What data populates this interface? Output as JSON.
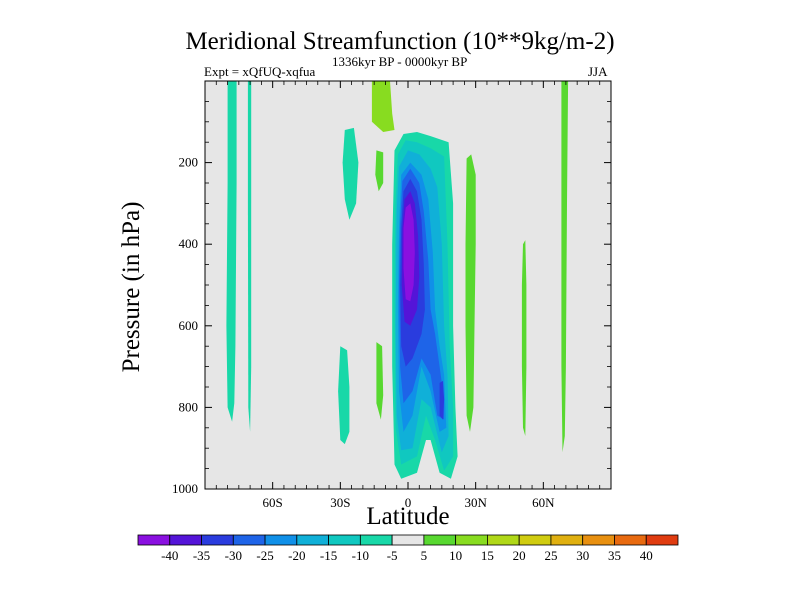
{
  "chart_data": {
    "type": "heatmap",
    "title": "Meridional Streamfunction (10**9kg/m-2)",
    "left_annotation": "Expt = xQfUQ-xqfua",
    "center_annotation": "1336kyr BP - 0000kyr BP",
    "right_annotation": "JJA",
    "xlabel": "Latitude",
    "ylabel": "Pressure (in hPa)",
    "xlim": [
      -90,
      90
    ],
    "ylim": [
      1000,
      0
    ],
    "x_ticks": [
      {
        "value": -60,
        "label": "60S"
      },
      {
        "value": -30,
        "label": "30S"
      },
      {
        "value": 0,
        "label": "0"
      },
      {
        "value": 30,
        "label": "30N"
      },
      {
        "value": 60,
        "label": "60N"
      }
    ],
    "y_ticks": [
      {
        "value": 200,
        "label": "200"
      },
      {
        "value": 400,
        "label": "400"
      },
      {
        "value": 600,
        "label": "600"
      },
      {
        "value": 800,
        "label": "800"
      },
      {
        "value": 1000,
        "label": "1000"
      }
    ],
    "background_color": "#e6e6e6",
    "colorbar": {
      "labels": [
        "-40",
        "-35",
        "-30",
        "-25",
        "-20",
        "-15",
        "-10",
        "-5",
        "5",
        "10",
        "15",
        "20",
        "25",
        "30",
        "35",
        "40"
      ],
      "colors": [
        "#8a10e0",
        "#5414d8",
        "#2a3cde",
        "#1e64e8",
        "#1090e8",
        "#10b0d8",
        "#10c8c0",
        "#18d8a8",
        "#e6e6e6",
        "#58d830",
        "#88dc20",
        "#b0d818",
        "#d0cc10",
        "#e0b010",
        "#e89010",
        "#e86a10",
        "#e03c10"
      ]
    },
    "contour_regions": [
      {
        "name": "far-south-left-band",
        "color": "#18d8a8",
        "points": [
          [
            -80,
            0
          ],
          [
            -76,
            0
          ],
          [
            -76,
            250
          ],
          [
            -76.5,
            650
          ],
          [
            -77,
            790
          ],
          [
            -78,
            835
          ],
          [
            -80,
            800
          ],
          [
            -80.5,
            600
          ],
          [
            -80,
            250
          ]
        ]
      },
      {
        "name": "far-south-thin-band",
        "color": "#18d8a8",
        "points": [
          [
            -71,
            0
          ],
          [
            -69.5,
            0
          ],
          [
            -69.5,
            300
          ],
          [
            -69.5,
            700
          ],
          [
            -70,
            860
          ],
          [
            -70.8,
            800
          ],
          [
            -71,
            300
          ]
        ]
      },
      {
        "name": "south-upper-patch",
        "color": "#18d8a8",
        "points": [
          [
            -28,
            120
          ],
          [
            -24,
            115
          ],
          [
            -22,
            200
          ],
          [
            -23,
            300
          ],
          [
            -26,
            340
          ],
          [
            -28,
            290
          ],
          [
            -29,
            200
          ]
        ]
      },
      {
        "name": "south-lower-patch",
        "color": "#18d8a8",
        "points": [
          [
            -30,
            650
          ],
          [
            -27,
            660
          ],
          [
            -26,
            750
          ],
          [
            -26,
            860
          ],
          [
            -28,
            890
          ],
          [
            -30,
            880
          ],
          [
            -31,
            760
          ]
        ]
      },
      {
        "name": "south-upper-green-cap",
        "color": "#88dc20",
        "points": [
          [
            -16,
            0
          ],
          [
            -8,
            0
          ],
          [
            -7,
            80
          ],
          [
            -6,
            120
          ],
          [
            -11,
            125
          ],
          [
            -16,
            100
          ]
        ]
      },
      {
        "name": "south-upper-green-sliver",
        "color": "#58d830",
        "points": [
          [
            -14,
            170
          ],
          [
            -11,
            175
          ],
          [
            -11,
            250
          ],
          [
            -13,
            270
          ],
          [
            -14.5,
            230
          ]
        ]
      },
      {
        "name": "south-lower-green-sliver",
        "color": "#58d830",
        "points": [
          [
            -14,
            640
          ],
          [
            -11.5,
            650
          ],
          [
            -11,
            770
          ],
          [
            -12,
            830
          ],
          [
            -14,
            790
          ]
        ]
      },
      {
        "name": "tropical-cell-outer",
        "color": "#18d8a8",
        "points": [
          [
            -6,
            170
          ],
          [
            -2,
            130
          ],
          [
            4,
            125
          ],
          [
            10,
            135
          ],
          [
            18,
            150
          ],
          [
            20,
            300
          ],
          [
            20,
            600
          ],
          [
            21,
            800
          ],
          [
            22,
            920
          ],
          [
            19,
            975
          ],
          [
            14,
            960
          ],
          [
            10,
            880
          ],
          [
            8,
            880
          ],
          [
            4,
            960
          ],
          [
            -3,
            975
          ],
          [
            -6,
            940
          ],
          [
            -7,
            700
          ],
          [
            -7,
            400
          ]
        ]
      },
      {
        "name": "tropical-cell-ring-10",
        "color": "#10c8c0",
        "points": [
          [
            -4.5,
            180
          ],
          [
            -1,
            145
          ],
          [
            4,
            150
          ],
          [
            10,
            165
          ],
          [
            16,
            185
          ],
          [
            17.5,
            400
          ],
          [
            18.5,
            650
          ],
          [
            20,
            800
          ],
          [
            20,
            920
          ],
          [
            16,
            955
          ],
          [
            12,
            880
          ],
          [
            8,
            820
          ],
          [
            4,
            920
          ],
          [
            -3,
            940
          ],
          [
            -5.5,
            850
          ],
          [
            -6,
            500
          ],
          [
            -5.5,
            300
          ]
        ]
      },
      {
        "name": "tropical-cell-ring-15",
        "color": "#10b0d8",
        "points": [
          [
            -4,
            210
          ],
          [
            0,
            170
          ],
          [
            5,
            180
          ],
          [
            10,
            215
          ],
          [
            13,
            260
          ],
          [
            15,
            400
          ],
          [
            16,
            600
          ],
          [
            17.5,
            720
          ],
          [
            18,
            870
          ],
          [
            15,
            910
          ],
          [
            10,
            800
          ],
          [
            6,
            780
          ],
          [
            2,
            900
          ],
          [
            -3,
            905
          ],
          [
            -5,
            820
          ],
          [
            -5.5,
            600
          ],
          [
            -5,
            320
          ]
        ]
      },
      {
        "name": "tropical-cell-ring-20",
        "color": "#1090e8",
        "points": [
          [
            -3,
            230
          ],
          [
            1,
            200
          ],
          [
            6,
            230
          ],
          [
            9,
            290
          ],
          [
            11,
            420
          ],
          [
            12,
            560
          ],
          [
            14,
            650
          ],
          [
            16,
            720
          ],
          [
            17,
            850
          ],
          [
            14,
            860
          ],
          [
            10,
            760
          ],
          [
            6,
            700
          ],
          [
            2,
            820
          ],
          [
            -2,
            860
          ],
          [
            -4,
            760
          ],
          [
            -4.5,
            550
          ],
          [
            -4,
            360
          ]
        ]
      },
      {
        "name": "tropical-cell-ring-25",
        "color": "#1e64e8",
        "points": [
          [
            -2.5,
            245
          ],
          [
            1,
            215
          ],
          [
            5,
            250
          ],
          [
            7,
            320
          ],
          [
            9,
            440
          ],
          [
            10,
            560
          ],
          [
            12,
            620
          ],
          [
            14,
            700
          ],
          [
            16,
            780
          ],
          [
            16,
            830
          ],
          [
            13,
            820
          ],
          [
            10,
            720
          ],
          [
            6,
            680
          ],
          [
            2,
            760
          ],
          [
            -2,
            790
          ],
          [
            -3.5,
            700
          ],
          [
            -4,
            500
          ],
          [
            -3.5,
            350
          ]
        ]
      },
      {
        "name": "tropical-cell-ring-30",
        "color": "#2a3cde",
        "points": [
          [
            -2,
            270
          ],
          [
            1,
            240
          ],
          [
            4,
            270
          ],
          [
            6,
            340
          ],
          [
            7,
            450
          ],
          [
            7.5,
            560
          ],
          [
            6,
            620
          ],
          [
            2,
            680
          ],
          [
            -1,
            700
          ],
          [
            -3,
            650
          ],
          [
            -3.5,
            500
          ],
          [
            -3,
            360
          ]
        ]
      },
      {
        "name": "tropical-cell-core-35",
        "color": "#5414d8",
        "points": [
          [
            -1.5,
            290
          ],
          [
            1,
            270
          ],
          [
            3,
            300
          ],
          [
            4.5,
            380
          ],
          [
            5,
            480
          ],
          [
            4,
            560
          ],
          [
            1,
            600
          ],
          [
            -1.5,
            590
          ],
          [
            -2.8,
            500
          ],
          [
            -2.5,
            360
          ]
        ]
      },
      {
        "name": "tropical-cell-core-40",
        "color": "#8a10e0",
        "points": [
          [
            -1,
            310
          ],
          [
            1,
            300
          ],
          [
            2.5,
            340
          ],
          [
            3,
            420
          ],
          [
            2.5,
            500
          ],
          [
            1,
            540
          ],
          [
            -1,
            535
          ],
          [
            -2,
            460
          ],
          [
            -2,
            360
          ]
        ]
      },
      {
        "name": "north-lower-blue-patch",
        "color": "#2a3cde",
        "points": [
          [
            14,
            740
          ],
          [
            15.5,
            735
          ],
          [
            16,
            780
          ],
          [
            15.5,
            830
          ],
          [
            14,
            820
          ]
        ]
      },
      {
        "name": "north-green-band",
        "color": "#58d830",
        "points": [
          [
            26,
            190
          ],
          [
            28,
            180
          ],
          [
            30,
            230
          ],
          [
            30,
            400
          ],
          [
            29.5,
            600
          ],
          [
            29,
            800
          ],
          [
            27.5,
            860
          ],
          [
            26,
            820
          ],
          [
            25.5,
            600
          ],
          [
            25.5,
            400
          ]
        ]
      },
      {
        "name": "north-mid-green-sliver",
        "color": "#58d830",
        "points": [
          [
            51,
            400
          ],
          [
            52,
            390
          ],
          [
            52.5,
            500
          ],
          [
            52.5,
            700
          ],
          [
            52,
            870
          ],
          [
            51,
            850
          ],
          [
            50.5,
            700
          ],
          [
            50.5,
            500
          ]
        ]
      },
      {
        "name": "north-far-green-band",
        "color": "#58d830",
        "points": [
          [
            68,
            0
          ],
          [
            71,
            0
          ],
          [
            70.5,
            300
          ],
          [
            70,
            700
          ],
          [
            69.5,
            870
          ],
          [
            68.5,
            910
          ],
          [
            68,
            700
          ],
          [
            68,
            300
          ]
        ]
      }
    ]
  }
}
